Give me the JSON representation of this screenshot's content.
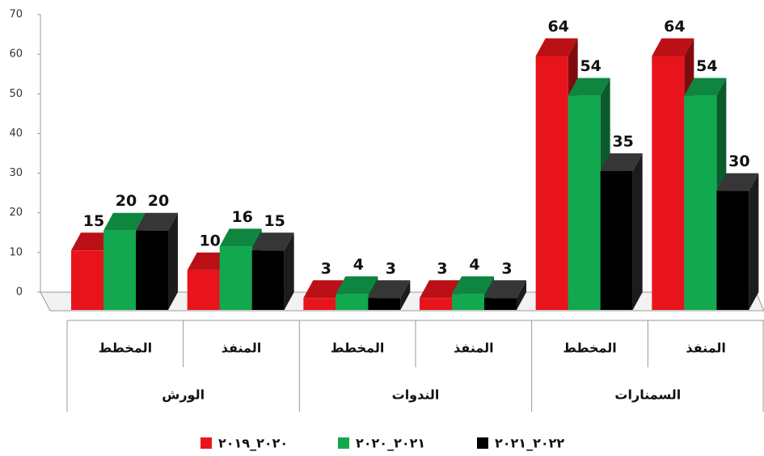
{
  "chart_data": {
    "type": "bar3d",
    "categories": [
      "المخطط",
      "المنفذ",
      "المخطط",
      "المنفذ",
      "المخطط",
      "المنفذ"
    ],
    "groups": [
      "الورش",
      "الندوات",
      "السمنارات"
    ],
    "series": [
      {
        "name": "٢٠٢٠_٢٠١٩",
        "color": "#e8141b",
        "values": [
          15,
          10,
          3,
          3,
          64,
          64
        ]
      },
      {
        "name": "٢٠٢١_٢٠٢٠",
        "color": "#12a850",
        "values": [
          20,
          16,
          4,
          4,
          54,
          54
        ]
      },
      {
        "name": "٢٠٢٢_٢٠٢١",
        "color": "#000000",
        "values": [
          20,
          15,
          3,
          3,
          35,
          30
        ]
      }
    ],
    "ylim": [
      0,
      70
    ],
    "yticks": [
      0,
      10,
      20,
      30,
      40,
      50,
      60,
      70
    ],
    "legend": "bottom"
  }
}
